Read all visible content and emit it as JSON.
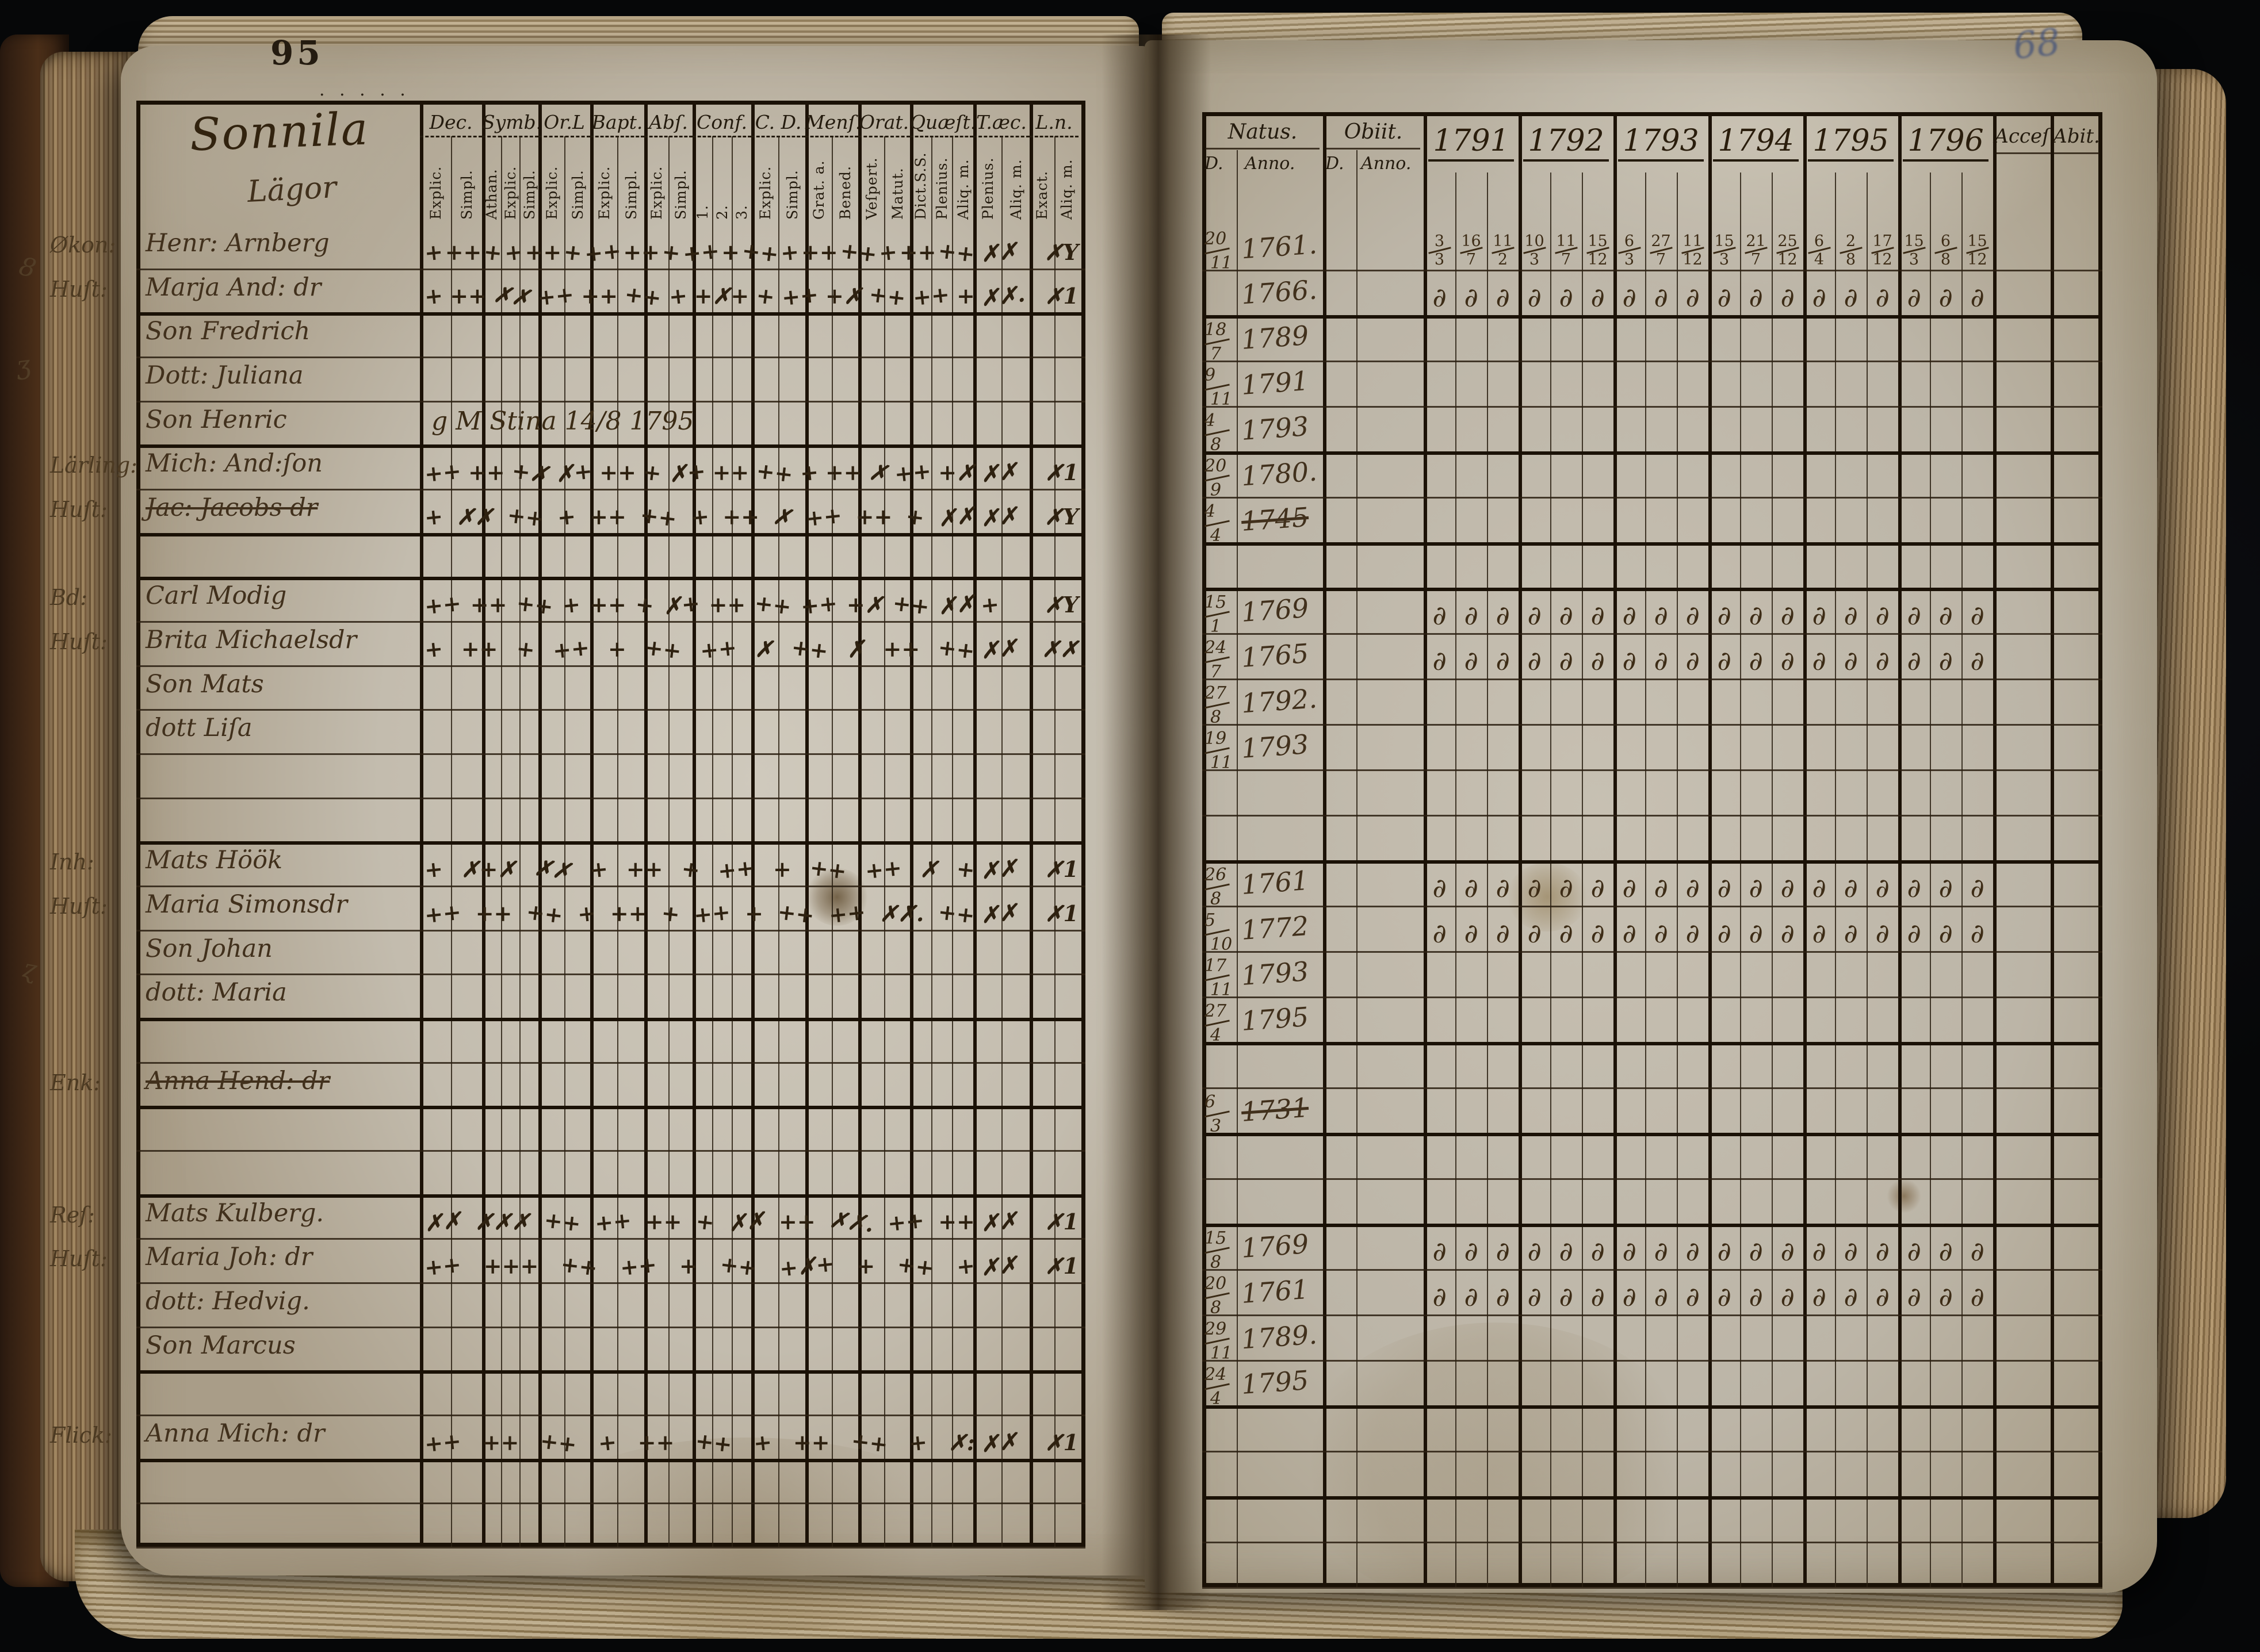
{
  "meta": {
    "left_page_number": "95",
    "right_page_number": "68",
    "community": "Sonnila",
    "community_sub": "Lägor",
    "top_squiggle": "· · · · ·",
    "margin_notes": [
      "8",
      "ʒ",
      "ɀ"
    ]
  },
  "colors": {
    "background": "#0a0b0e",
    "paper": "#c7c0b2",
    "paper_shadow": "#a3977f",
    "ink_lines": "#1c1207",
    "handwriting": "#41301c",
    "blue_note": "#44537a",
    "page_edge": "#8a7152"
  },
  "left_table": {
    "columns": [
      {
        "label": "Dec.",
        "subs": [
          "Explic.",
          "Simpl."
        ],
        "w": 108
      },
      {
        "label": "Symb.",
        "subs": [
          "Athan.",
          "Explic.",
          "Simpl."
        ],
        "w": 98
      },
      {
        "label": "Or.L",
        "subs": [
          "Explic.",
          "Simpl."
        ],
        "w": 90
      },
      {
        "label": "Bapt.",
        "subs": [
          "Explic.",
          "Simpl."
        ],
        "w": 94
      },
      {
        "label": "Abſ.",
        "subs": [
          "Explic.",
          "Simpl."
        ],
        "w": 84
      },
      {
        "label": "Conf.",
        "subs": [
          "1.",
          "2.",
          "3."
        ],
        "w": 102
      },
      {
        "label": "C. D.",
        "subs": [
          "Explic.",
          "Simpl."
        ],
        "w": 94
      },
      {
        "label": "Menſ.",
        "subs": [
          "Grat. a.",
          "Bened."
        ],
        "w": 92
      },
      {
        "label": "Orat.",
        "subs": [
          "Veſpert.",
          "Matut."
        ],
        "w": 90
      },
      {
        "label": "Quæſt.",
        "subs": [
          "Dict.S.S.",
          "Plenius.",
          "Aliq. m."
        ],
        "w": 110
      },
      {
        "label": "T.æc.",
        "subs": [
          "Plenius.",
          "Aliq. m."
        ],
        "w": 98
      },
      {
        "label": "L.n.",
        "subs": [
          "Exact.",
          "Aliq. m."
        ],
        "w": 85
      }
    ]
  },
  "right_table": {
    "natus_label": "Natus.",
    "obiit_label": "Obiit.",
    "day_label": "D.",
    "anno_label": "Anno.",
    "years": [
      "1791",
      "1792",
      "1793",
      "1794",
      "1795",
      "1796"
    ],
    "acces_label": "Acceſ",
    "abit_label": "Abit."
  },
  "rows": [
    {
      "prefix": "Økon:",
      "name": "Henr: Arnberg",
      "m": "+ ++ + + ++ + ++ ++ + ++ + ++ + ++ ++ + ++ ++",
      "me": "✗✗ ✗Y",
      "nd": [
        "20",
        "11"
      ],
      "na": "1761.",
      "tb": 1,
      "y": [
        [
          [
            "3",
            "3"
          ],
          [
            "16",
            "7"
          ],
          [
            "11",
            "2"
          ]
        ],
        [
          [
            "10",
            "3"
          ],
          [
            "11",
            "7"
          ],
          [
            "15",
            "12"
          ]
        ],
        [
          [
            "6",
            "3"
          ],
          [
            "27",
            "7"
          ],
          [
            "11",
            "12"
          ]
        ],
        [
          [
            "15",
            "3"
          ],
          [
            "21",
            "7"
          ],
          [
            "25",
            "12"
          ]
        ],
        [
          [
            "6",
            "4"
          ],
          [
            "2",
            "8"
          ],
          [
            "17",
            "12"
          ]
        ],
        [
          [
            "15",
            "3"
          ],
          [
            "6",
            "8"
          ],
          [
            "15",
            "12"
          ]
        ]
      ]
    },
    {
      "prefix": "Huſt:",
      "name": "Marja And: dr",
      "m": "+ ++ ✗✗ ++ ++ ++ + +✗+ + ++ +✗ ++ ++ +",
      "me": "✗✗. ✗1",
      "na": "1766.",
      "tb": 2,
      "y": [
        "d",
        "d",
        "d",
        "d",
        "d",
        "d"
      ]
    },
    {
      "prefix": "",
      "name": "Son Fredrich",
      "nd": [
        "18",
        "7"
      ],
      "na": "1789",
      "tb": 1,
      "y": [
        null,
        null,
        null,
        null,
        null,
        null
      ]
    },
    {
      "prefix": "",
      "name": "Dott: Juliana",
      "nd": [
        "9",
        "11"
      ],
      "na": "1791",
      "tb": 1,
      "y": [
        null,
        null,
        null,
        null,
        null,
        null
      ]
    },
    {
      "prefix": "",
      "name": "Son Henric",
      "note": "g M Stina 14/8 1795",
      "nd": [
        "4",
        "8"
      ],
      "na": "1793",
      "tb": 2,
      "y": [
        null,
        null,
        null,
        null,
        null,
        null
      ]
    },
    {
      "prefix": "Lärling:",
      "name": "Mich: And:ſon",
      "m": "++ ++ +✗ ✗+ ++ + ✗+ ++ ++ + ++ ✗ ++ +✗",
      "me": "✗✗ ✗1",
      "nd": [
        "20",
        "9"
      ],
      "na": "1780.",
      "tb": 1,
      "y": [
        null,
        null,
        null,
        null,
        null,
        null
      ]
    },
    {
      "prefix": "Huſt:",
      "name": "Jac: Jacobs dr",
      "struck": true,
      "m": "+ ✗✗ ++ + ++ ++ + ++ ✗ ++ ++ + ✗✗",
      "me": "✗✗ ✗Y",
      "nd": [
        "4",
        "4"
      ],
      "na": "1745",
      "na_struck": true,
      "tb": 2,
      "y": [
        null,
        null,
        null,
        null,
        null,
        null
      ]
    },
    {
      "tb": 2
    },
    {
      "prefix": "Bd:",
      "name": "Carl Modig",
      "m": "++ ++ ++ + ++ + ✗+ ++ ++ ++ +✗ ++ ✗✗",
      "me": "+ ✗Y",
      "nd": [
        "15",
        "1"
      ],
      "na": "1769",
      "tb": 1,
      "y": [
        "d",
        "d",
        "d",
        "d",
        "d",
        "d"
      ]
    },
    {
      "prefix": "Huſt:",
      "name": "Brita Michaelsdr",
      "m": "+ ++ + ++ + ++ ++ ✗ ++ ✗ ++ ++",
      "me": "✗✗ ✗✗",
      "nd": [
        "24",
        "7"
      ],
      "na": "1765",
      "tb": 1,
      "y": [
        "d",
        "d",
        "d",
        "d",
        "d",
        "d"
      ]
    },
    {
      "prefix": "",
      "name": "Son Mats",
      "nd": [
        "27",
        "8"
      ],
      "na": "1792.",
      "tb": 1,
      "y": [
        null,
        null,
        null,
        null,
        null,
        null
      ]
    },
    {
      "prefix": "",
      "name": "dott Liſa",
      "nd": [
        "19",
        "11"
      ],
      "na": "1793",
      "tb": 1,
      "y": [
        null,
        null,
        null,
        null,
        null,
        null
      ]
    },
    {
      "tb": 1
    },
    {
      "tb": 2
    },
    {
      "prefix": "Inh:",
      "name": "Mats Höök",
      "m": "+ ✗+✗ ✗✗ + ++ + ++ + ++ ++ ✗ +",
      "me": "✗✗ ✗1",
      "nd": [
        "26",
        "8"
      ],
      "na": "1761",
      "tb": 1,
      "y": [
        "d",
        "d",
        "d",
        "d",
        "d",
        "d"
      ]
    },
    {
      "prefix": "Huſt:",
      "name": "Maria Simonsdr",
      "m": "++ ++ ++ + ++ + ++ + ++ ++ ✗✗. ++",
      "me": "✗✗ ✗1",
      "nd": [
        "5",
        "10"
      ],
      "na": "1772",
      "tb": 1,
      "y": [
        "d",
        "d",
        "d",
        "d",
        "d",
        "d"
      ]
    },
    {
      "prefix": "",
      "name": "Son Johan",
      "nd": [
        "17",
        "11"
      ],
      "na": "1793",
      "tb": 1,
      "y": [
        null,
        null,
        null,
        null,
        null,
        null
      ]
    },
    {
      "prefix": "",
      "name": "dott: Maria",
      "nd": [
        "27",
        "4"
      ],
      "na": "1795",
      "tb": 2,
      "y": [
        null,
        null,
        null,
        null,
        null,
        null
      ]
    },
    {
      "tb": 1
    },
    {
      "prefix": "Enk:",
      "name": "Anna Hend: dr",
      "struck": true,
      "nd": [
        "6",
        "3"
      ],
      "na": "1731",
      "na_struck": true,
      "tb": 2,
      "y": [
        null,
        null,
        null,
        null,
        null,
        null
      ]
    },
    {
      "tb": 1
    },
    {
      "tb": 2
    },
    {
      "prefix": "Reſ:",
      "name": "Mats Kulberg.",
      "m": "✗✗ ✗✗✗ ++ ++ ++ + ✗✗ ++ ✗✗. ++ ++",
      "me": "✗✗ ✗1",
      "nd": [
        "15",
        "8"
      ],
      "na": "1769",
      "tb": 1,
      "y": [
        "d",
        "d",
        "d",
        "d",
        "d",
        "d"
      ]
    },
    {
      "prefix": "Huſt:",
      "name": "Maria Joh: dr",
      "m": "++ +++ ++ ++ + ++ +✗+ + ++ +",
      "me": "✗✗ ✗1",
      "nd": [
        "20",
        "8"
      ],
      "na": "1761",
      "tb": 1,
      "y": [
        "d",
        "d",
        "d",
        "d",
        "d",
        "d"
      ]
    },
    {
      "prefix": "",
      "name": "dott: Hedvig.",
      "nd": [
        "29",
        "11"
      ],
      "na": "1789.",
      "tb": 1,
      "y": [
        null,
        null,
        null,
        null,
        null,
        null
      ]
    },
    {
      "prefix": "",
      "name": "Son Marcus",
      "nd": [
        "24",
        "4"
      ],
      "na": "1795",
      "tb": 2,
      "y": [
        null,
        null,
        null,
        null,
        null,
        null
      ]
    },
    {
      "tb": 1
    },
    {
      "prefix": "Flick:",
      "name": "Anna Mich: dr",
      "m": "++ ++ ++ + ++ ++ + ++ ++ + ✗:",
      "me": "✗✗ ✗1",
      "tb": 2,
      "y": [
        null,
        null,
        null,
        null,
        null,
        null
      ]
    },
    {
      "tb": 1
    },
    {
      "tb": 1
    }
  ]
}
